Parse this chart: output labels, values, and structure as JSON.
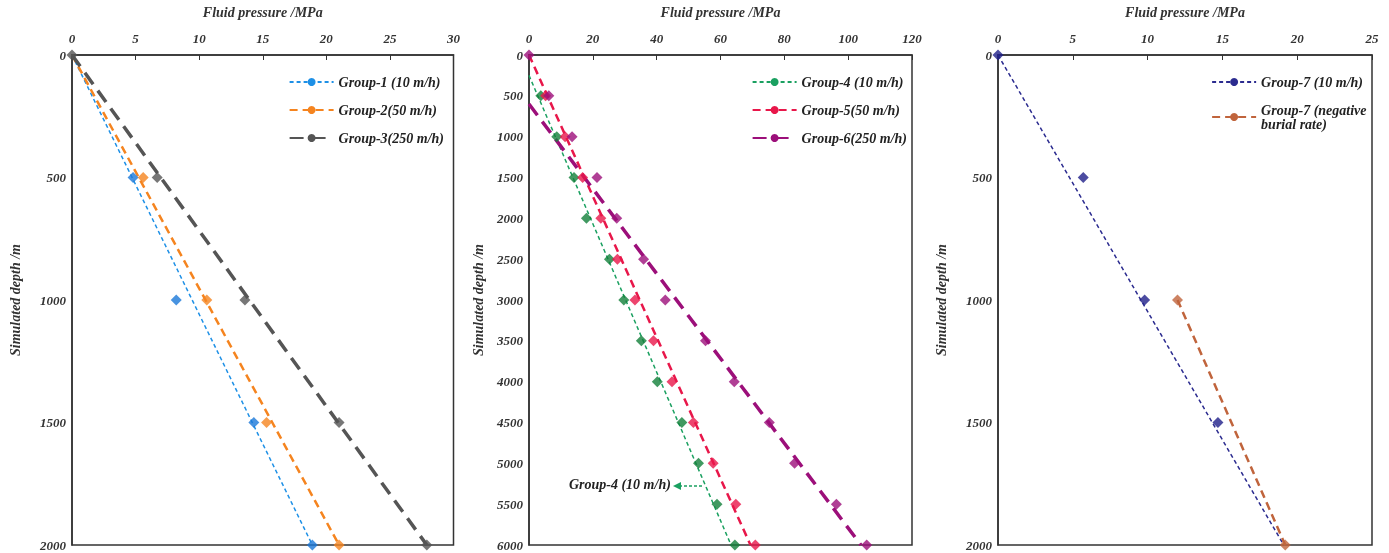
{
  "chart_data": [
    {
      "type": "line",
      "xlabel": "Fluid pressure /MPa",
      "ylabel": "Simulated depth /m",
      "xlim": [
        0,
        30
      ],
      "xticks": [
        0,
        5,
        10,
        15,
        20,
        25,
        30
      ],
      "ylim": [
        2000,
        0
      ],
      "yticks": [
        0,
        500,
        1000,
        1500,
        2000
      ],
      "legend": "top right",
      "marker": "diamond",
      "line_style": "dashed",
      "series": [
        {
          "name": "Group-1 (10 m/h)",
          "color": "#1e90e6",
          "marker": "none",
          "x": [
            0,
            18.9
          ],
          "values": [
            0,
            2000
          ]
        },
        {
          "name": "Group-2(50 m/h)",
          "color": "#f5841f",
          "marker": "none",
          "x": [
            0,
            21
          ],
          "values": [
            0,
            2000
          ]
        },
        {
          "name": "Group-3(250 m/h)",
          "color": "#555555",
          "marker": "none",
          "x": [
            0,
            27.9
          ],
          "values": [
            0,
            2000
          ]
        },
        {
          "type": "scatter",
          "color": "#1a78d8",
          "x": [
            4.8,
            8.2,
            14.3,
            18.9
          ],
          "values": [
            500,
            1000,
            1500,
            2000
          ]
        },
        {
          "type": "scatter",
          "color": "#f5841f",
          "x": [
            5.6,
            10.6,
            15.3,
            21
          ],
          "values": [
            500,
            1000,
            1500,
            2000
          ]
        },
        {
          "type": "scatter",
          "color": "#555555",
          "x": [
            0,
            6.7,
            13.6,
            21,
            27.9
          ],
          "values": [
            0,
            500,
            1000,
            1500,
            2000
          ]
        }
      ]
    },
    {
      "type": "line",
      "xlabel": "Fluid pressure /MPa",
      "ylabel": "Simulated depth /m",
      "xlim": [
        0,
        120
      ],
      "xticks": [
        0,
        20,
        40,
        60,
        80,
        100,
        120
      ],
      "ylim": [
        6000,
        0
      ],
      "yticks": [
        0,
        500,
        1000,
        1500,
        2000,
        2500,
        3000,
        3500,
        4000,
        4500,
        5000,
        5500,
        6000
      ],
      "legend": "top right",
      "marker": "diamond",
      "line_style": "dashed",
      "annotations": [
        {
          "text": "Group-4 (10 m/h)",
          "x": 54.5,
          "y": 5280
        }
      ],
      "series": [
        {
          "name": "Group-4 (10 m/h)",
          "color": "#1aa060",
          "marker": "none",
          "x": [
            0,
            63.3
          ],
          "values": [
            250,
            6000
          ]
        },
        {
          "name": "Group-5(50 m/h)",
          "color": "#e8174a",
          "marker": "none",
          "x": [
            0,
            69.4
          ],
          "values": [
            0,
            6000
          ]
        },
        {
          "name": "Group-6(250 m/h)",
          "color": "#9c0f7a",
          "marker": "none",
          "x": [
            0,
            104
          ],
          "values": [
            600,
            6000
          ]
        },
        {
          "type": "scatter",
          "color": "#12803a",
          "x": [
            3.7,
            8.7,
            14.1,
            18,
            25.2,
            29.7,
            35.2,
            40.2,
            47.9,
            53.1,
            58.9,
            64.5
          ],
          "values": [
            500,
            1000,
            1500,
            2000,
            2500,
            3000,
            3500,
            4000,
            4500,
            5000,
            5500,
            6000
          ]
        },
        {
          "type": "scatter",
          "color": "#e8174a",
          "x": [
            5.2,
            11.3,
            16.8,
            22.5,
            27.7,
            33.2,
            39,
            44.8,
            51.5,
            57.7,
            64.8,
            70.9
          ],
          "values": [
            500,
            1000,
            1500,
            2000,
            2500,
            3000,
            3500,
            4000,
            4500,
            5000,
            5500,
            6000
          ]
        },
        {
          "type": "scatter",
          "color": "#9c0f7a",
          "x": [
            0,
            6.2,
            13.5,
            21.3,
            27.5,
            35.9,
            42.7,
            55.3,
            64.3,
            75.3,
            83.2,
            96.3,
            105.8
          ],
          "values": [
            0,
            500,
            1000,
            1500,
            2000,
            2500,
            3000,
            3500,
            4000,
            4500,
            5000,
            5500,
            6000
          ]
        }
      ]
    },
    {
      "type": "line",
      "xlabel": "Fluid pressure /MPa",
      "ylabel": "Simulated depth /m",
      "xlim": [
        0,
        25
      ],
      "xticks": [
        0,
        5,
        10,
        15,
        20,
        25
      ],
      "ylim": [
        2000,
        0
      ],
      "yticks": [
        0,
        500,
        1000,
        1500,
        2000
      ],
      "legend": "top right",
      "marker": "diamond",
      "line_style": "dashed",
      "series": [
        {
          "name": "Group-7 (10 m/h)",
          "color": "#2b2b8f",
          "marker": "none",
          "x": [
            0,
            19.1
          ],
          "values": [
            0,
            2000
          ]
        },
        {
          "name": "Group-7 (negative burial rate)",
          "color": "#c0643c",
          "marker": "none",
          "x": [
            12,
            19.2
          ],
          "values": [
            1000,
            2000
          ]
        },
        {
          "type": "scatter",
          "color": "#1f1f8a",
          "x": [
            0,
            5.7,
            9.8,
            14.7
          ],
          "values": [
            0,
            500,
            1000,
            1500
          ]
        },
        {
          "type": "scatter",
          "color": "#c0643c",
          "x": [
            12,
            19.2
          ],
          "values": [
            1000,
            2000
          ]
        }
      ]
    }
  ]
}
